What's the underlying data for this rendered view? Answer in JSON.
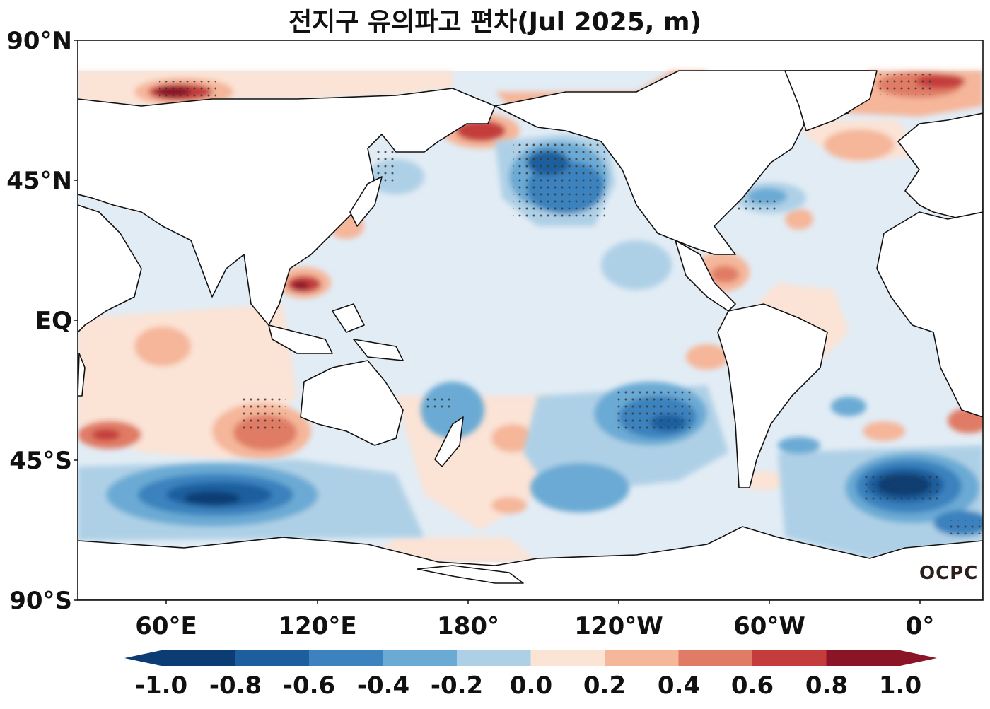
{
  "title": "전지구 유의파고 편차(Jul 2025, m)",
  "logo_text": "OCPC",
  "lat_labels": [
    "90°N",
    "45°N",
    "EQ",
    "45°S",
    "90°S"
  ],
  "lon_labels": [
    "60°E",
    "120°E",
    "180°",
    "120°W",
    "60°W",
    "0°"
  ],
  "colorbar": {
    "ticks": [
      "-1.0",
      "-0.8",
      "-0.6",
      "-0.4",
      "-0.2",
      "0.0",
      "0.2",
      "0.4",
      "0.6",
      "0.8",
      "1.0"
    ],
    "colors": [
      "#0b3c73",
      "#1d5e9f",
      "#3b82be",
      "#6aaad4",
      "#aed0e6",
      "#e2ecf5",
      "#fbe3d5",
      "#f5b69a",
      "#e07b65",
      "#c43c3c",
      "#8b1526"
    ],
    "extend": "both"
  },
  "land_color": "#ffffff",
  "stippling": "dots mark significant anomalies"
}
